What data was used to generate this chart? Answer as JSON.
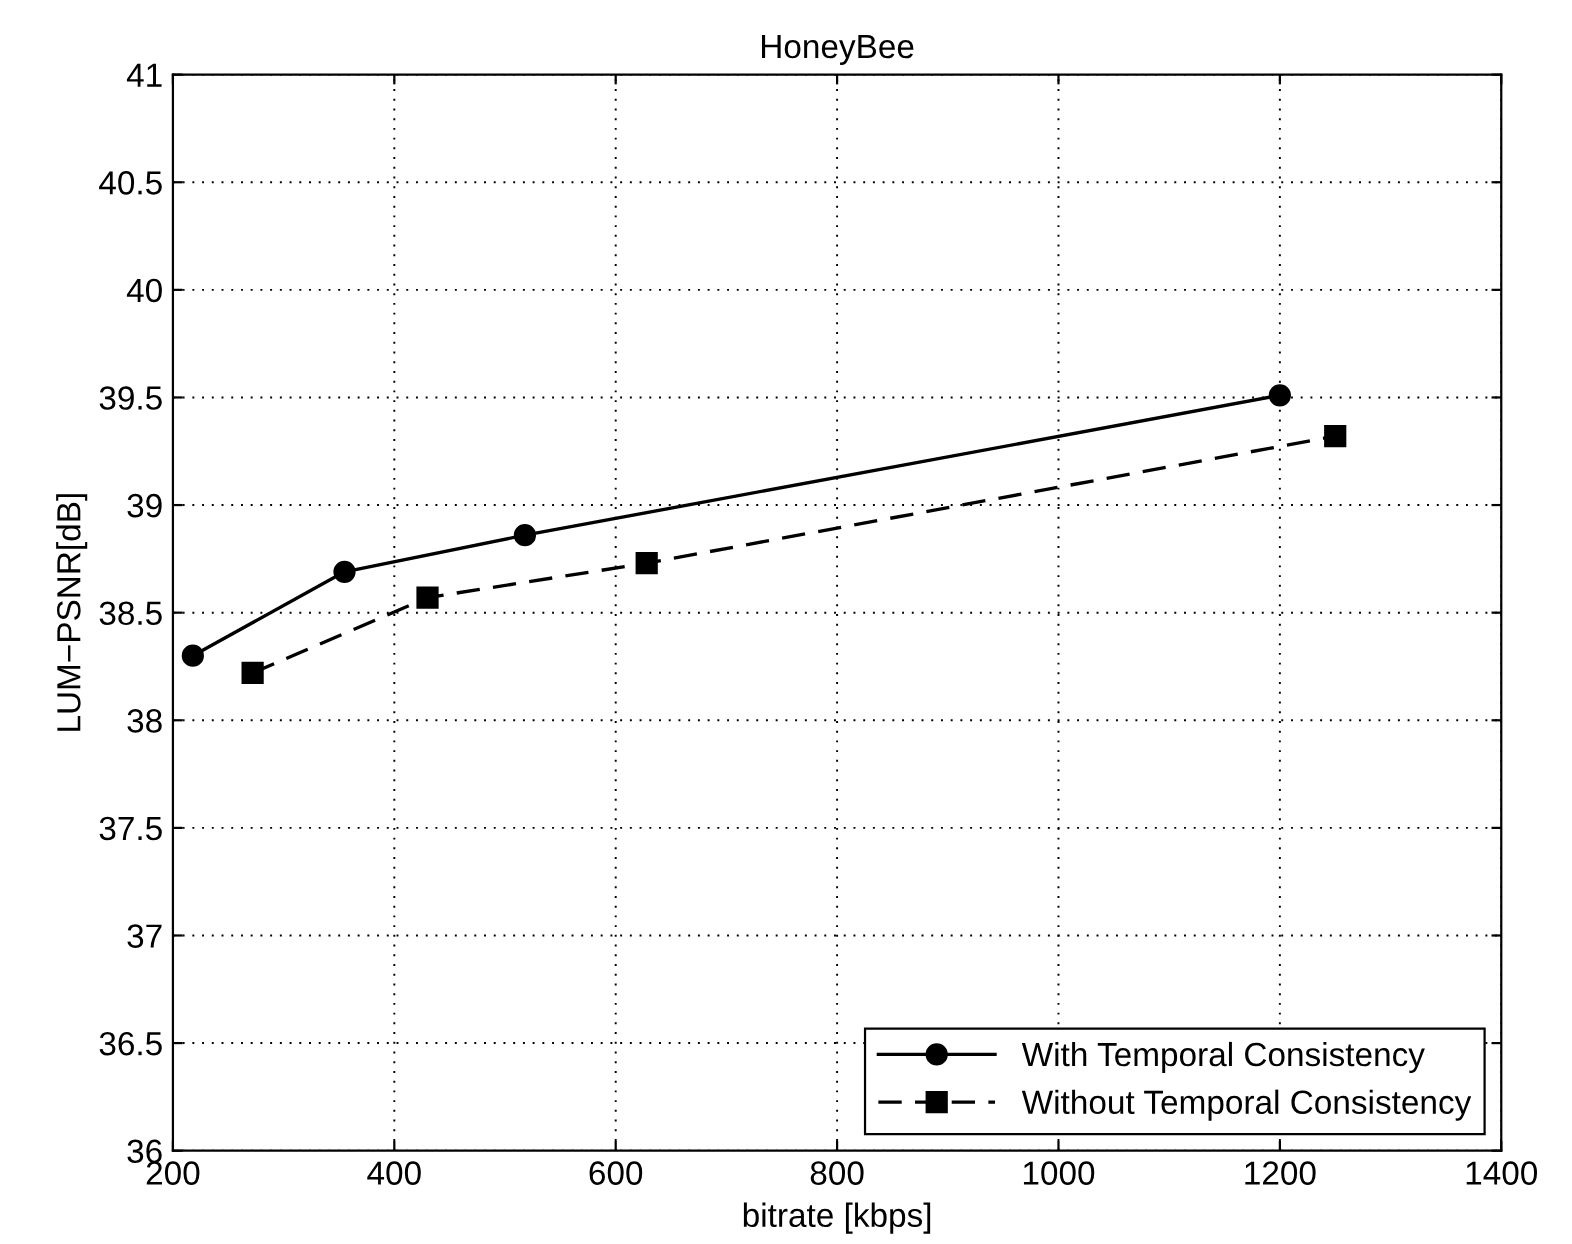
{
  "chart_data": {
    "type": "line",
    "title": "HoneyBee",
    "xlabel": "bitrate [kbps]",
    "ylabel": "LUM−PSNR[dB]",
    "xlim": [
      200,
      1400
    ],
    "xticks": [
      200,
      400,
      600,
      800,
      1000,
      1200,
      1400
    ],
    "ylim": [
      36,
      41
    ],
    "yticks": [
      36,
      36.5,
      37,
      37.5,
      38,
      38.5,
      39,
      39.5,
      40,
      40.5,
      41
    ],
    "grid": true,
    "legend": "bottom right",
    "series": [
      {
        "name": "With Temporal Consistency",
        "color": "#000000",
        "marker": "circle",
        "line_style": "solid",
        "x": [
          218,
          355,
          518,
          1200
        ],
        "values": [
          38.3,
          38.69,
          38.86,
          39.51
        ]
      },
      {
        "name": "Without Temporal Consistency",
        "color": "#000000",
        "marker": "square",
        "line_style": "dashed",
        "x": [
          272,
          430,
          628,
          1250
        ],
        "values": [
          38.22,
          38.57,
          38.73,
          39.32
        ]
      }
    ]
  }
}
